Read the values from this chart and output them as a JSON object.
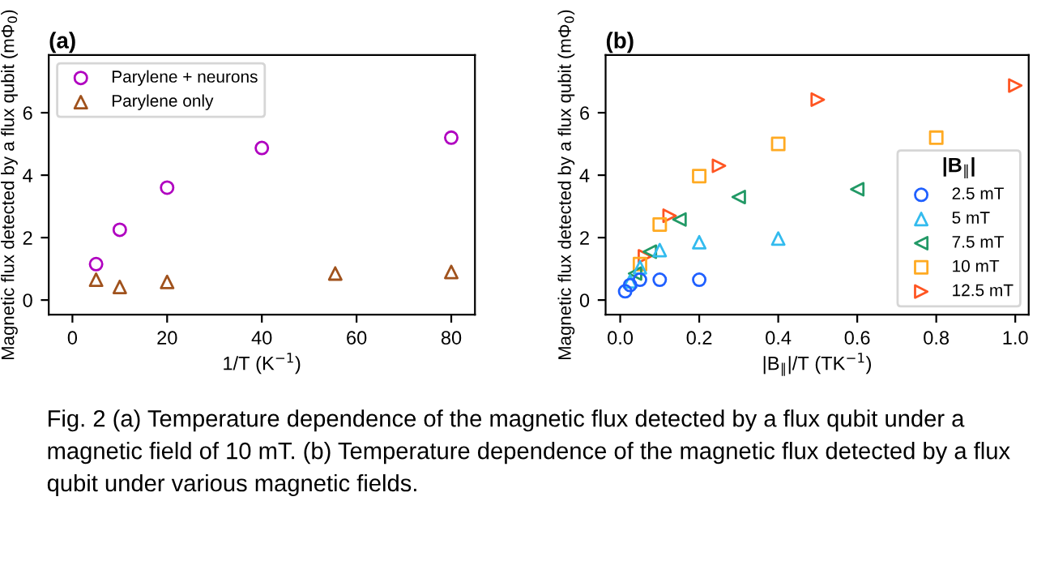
{
  "chart_data": [
    {
      "type": "scatter",
      "title": "(a)",
      "xlabel": "1/T (K$^{−1}$)",
      "ylabel": "Magnetic flux detected by a flux qubit (mΦ$_{0}$)",
      "xlim": [
        -5,
        85
      ],
      "ylim": [
        -0.47,
        7.85
      ],
      "xticks": [
        0,
        20,
        40,
        60,
        80
      ],
      "yticks": [
        0,
        2,
        4,
        6
      ],
      "grid": false,
      "legend": "top left",
      "series": [
        {
          "name": "Parylene + neurons",
          "color": "#b000c0",
          "marker": "circle",
          "x": [
            5,
            10,
            20,
            40,
            80
          ],
          "values": [
            1.15,
            2.25,
            3.6,
            4.87,
            5.2
          ]
        },
        {
          "name": "Parylene only",
          "color": "#a0521d",
          "marker": "triangle",
          "x": [
            5,
            10,
            20,
            55.5,
            80
          ],
          "values": [
            0.65,
            0.42,
            0.58,
            0.85,
            0.9
          ]
        }
      ]
    },
    {
      "type": "scatter",
      "title": "(b)",
      "xlabel": "|B$_{∥}$|/T (TK$^{−1}$)",
      "ylabel": "Magnetic flux detected by a flux qubit (mΦ$_{0}$)",
      "legend_title": "|B$_{∥}$|",
      "xlim": [
        -0.037,
        1.034
      ],
      "ylim": [
        -0.47,
        7.85
      ],
      "xticks": [
        {
          "value": 0,
          "label": "0.0"
        },
        {
          "value": 0.2,
          "label": "0.2"
        },
        {
          "value": 0.4,
          "label": "0.4"
        },
        {
          "value": 0.6,
          "label": "0.6"
        },
        {
          "value": 0.8,
          "label": "0.8"
        },
        {
          "value": 1,
          "label": "1.0"
        }
      ],
      "yticks": [
        0,
        2,
        4,
        6
      ],
      "grid": false,
      "legend": "bottom right",
      "series": [
        {
          "name": "2.5 mT",
          "color": "#2060ff",
          "marker": "circle",
          "x": [
            0.0125,
            0.025,
            0.05,
            0.1,
            0.2
          ],
          "values": [
            0.28,
            0.48,
            0.65,
            0.65,
            0.65
          ]
        },
        {
          "name": "5 mT",
          "color": "#33bbee",
          "marker": "triangle",
          "x": [
            0.025,
            0.05,
            0.1,
            0.2,
            0.4
          ],
          "values": [
            0.6,
            1.05,
            1.6,
            1.85,
            1.97
          ]
        },
        {
          "name": "7.5 mT",
          "color": "#229966",
          "marker": "triangle_left",
          "x": [
            0.0375,
            0.075,
            0.15,
            0.3,
            0.6
          ],
          "values": [
            0.85,
            1.55,
            2.58,
            3.3,
            3.55
          ]
        },
        {
          "name": "10 mT",
          "color": "#ffaa22",
          "marker": "square",
          "x": [
            0.05,
            0.1,
            0.2,
            0.4,
            0.8
          ],
          "values": [
            1.15,
            2.42,
            3.97,
            5.0,
            5.2
          ]
        },
        {
          "name": "12.5 mT",
          "color": "#ff5522",
          "marker": "triangle_right",
          "x": [
            0.0625,
            0.125,
            0.25,
            0.5,
            1.0
          ],
          "values": [
            1.4,
            2.7,
            4.3,
            6.42,
            6.87
          ]
        }
      ],
      "annotations": [
        "Fig. 2 (a) Temperature dependence of the magnetic flux detected by a flux qubit under a magnetic field of 10 mT. (b) Temperature dependence of the magnetic flux detected by a flux qubit under various magnetic fields."
      ]
    }
  ]
}
